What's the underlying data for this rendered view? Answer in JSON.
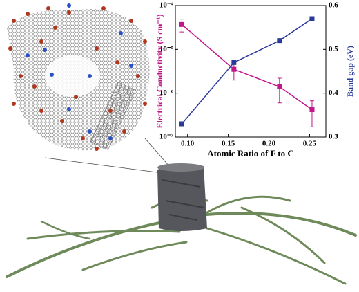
{
  "chart_data": {
    "type": "line",
    "x_label": "Atomic Ratio of F to C",
    "y_label": "Electrical Conductivity (S cm⁻¹)",
    "y2_label": "Band gap (eV)",
    "x": [
      0.093,
      0.157,
      0.213,
      0.253
    ],
    "series": [
      {
        "name": "Electrical Conductivity",
        "color": "#c0178a",
        "axis": "y",
        "values": [
          3.7e-05,
          3.5e-06,
          1.4e-06,
          4.2e-07
        ],
        "errors": [
          1.2e-05,
          1.5e-06,
          8e-07,
          2.5e-07
        ]
      },
      {
        "name": "Band gap",
        "color": "#2a3a9a",
        "axis": "y2",
        "values": [
          0.33,
          0.47,
          0.52,
          0.57
        ]
      }
    ],
    "xlim": [
      0.085,
      0.27
    ],
    "xticks": [
      {
        "value": 0.1,
        "label": "0.10"
      },
      {
        "value": 0.15,
        "label": "0.15"
      },
      {
        "value": 0.2,
        "label": "0.20"
      },
      {
        "value": 0.25,
        "label": "0.25"
      }
    ],
    "ylim": [
      1e-07,
      0.0001
    ],
    "yscale": "log",
    "yticks": [
      {
        "value": 1e-07,
        "label": "10⁻⁷"
      },
      {
        "value": 1e-06,
        "label": "10⁻⁶"
      },
      {
        "value": 1e-05,
        "label": "10⁻⁵"
      },
      {
        "value": 0.0001,
        "label": "10⁻⁴"
      }
    ],
    "y2lim": [
      0.3,
      0.6
    ],
    "y2ticks": [
      0.3,
      0.4,
      0.5,
      0.6
    ]
  }
}
